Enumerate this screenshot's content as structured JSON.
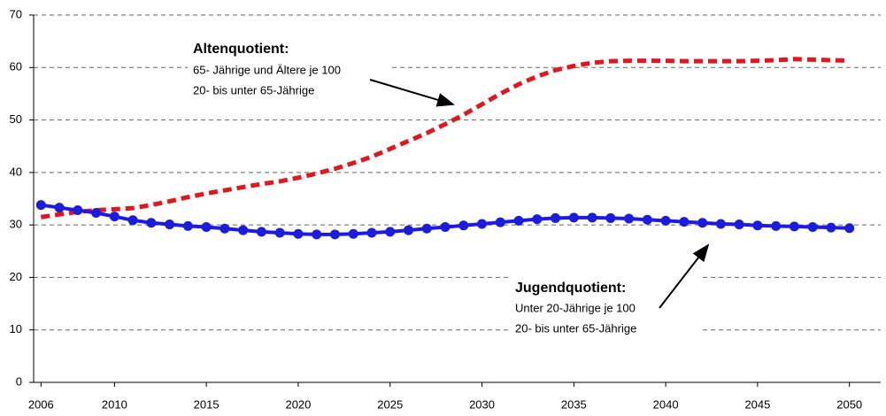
{
  "chart_data": {
    "type": "line",
    "x": [
      2006,
      2007,
      2008,
      2009,
      2010,
      2011,
      2012,
      2013,
      2014,
      2015,
      2016,
      2017,
      2018,
      2019,
      2020,
      2021,
      2022,
      2023,
      2024,
      2025,
      2026,
      2027,
      2028,
      2029,
      2030,
      2031,
      2032,
      2033,
      2034,
      2035,
      2036,
      2037,
      2038,
      2039,
      2040,
      2041,
      2042,
      2043,
      2044,
      2045,
      2046,
      2047,
      2048,
      2049,
      2050
    ],
    "series": [
      {
        "name": "Altenquotient",
        "color": "#e8141c",
        "dashed": true,
        "markers": false,
        "values": [
          31.5,
          32,
          32.5,
          32.8,
          33,
          33.2,
          33.8,
          34.5,
          35.3,
          36,
          36.6,
          37.2,
          37.8,
          38.3,
          39,
          39.8,
          40.7,
          41.8,
          43,
          44.5,
          46,
          47.5,
          49.2,
          51,
          53,
          55,
          56.8,
          58.3,
          59.5,
          60.3,
          60.9,
          61.2,
          61.3,
          61.3,
          61.3,
          61.2,
          61.2,
          61.2,
          61.2,
          61.3,
          61.4,
          61.6,
          61.5,
          61.4,
          61.3
        ]
      },
      {
        "name": "Jugendquotient",
        "color": "#1c1ce0",
        "dashed": false,
        "markers": true,
        "values": [
          33.8,
          33.3,
          32.8,
          32.3,
          31.6,
          30.9,
          30.4,
          30.1,
          29.8,
          29.6,
          29.3,
          29.0,
          28.7,
          28.5,
          28.3,
          28.2,
          28.2,
          28.3,
          28.5,
          28.7,
          29.0,
          29.3,
          29.6,
          29.9,
          30.2,
          30.5,
          30.8,
          31.1,
          31.3,
          31.4,
          31.4,
          31.3,
          31.2,
          31.0,
          30.8,
          30.6,
          30.4,
          30.2,
          30.1,
          29.9,
          29.8,
          29.7,
          29.6,
          29.5,
          29.4
        ]
      }
    ],
    "annotations": [
      {
        "title": "Altenquotient:",
        "lines": [
          "65- Jährige und Ältere je 100",
          "20- bis unter 65-Jährige"
        ]
      },
      {
        "title": "Jugendquotient:",
        "lines": [
          "Unter 20-Jährige je 100",
          "20- bis unter 65-Jährige"
        ]
      }
    ],
    "xlim": [
      2005.6,
      2051.7
    ],
    "xticks": [
      2006,
      2010,
      2015,
      2020,
      2025,
      2030,
      2035,
      2040,
      2045,
      2050
    ],
    "ylim": [
      0,
      70
    ],
    "yticks": [
      0,
      10,
      20,
      30,
      40,
      50,
      60,
      70
    ],
    "grid": true
  }
}
